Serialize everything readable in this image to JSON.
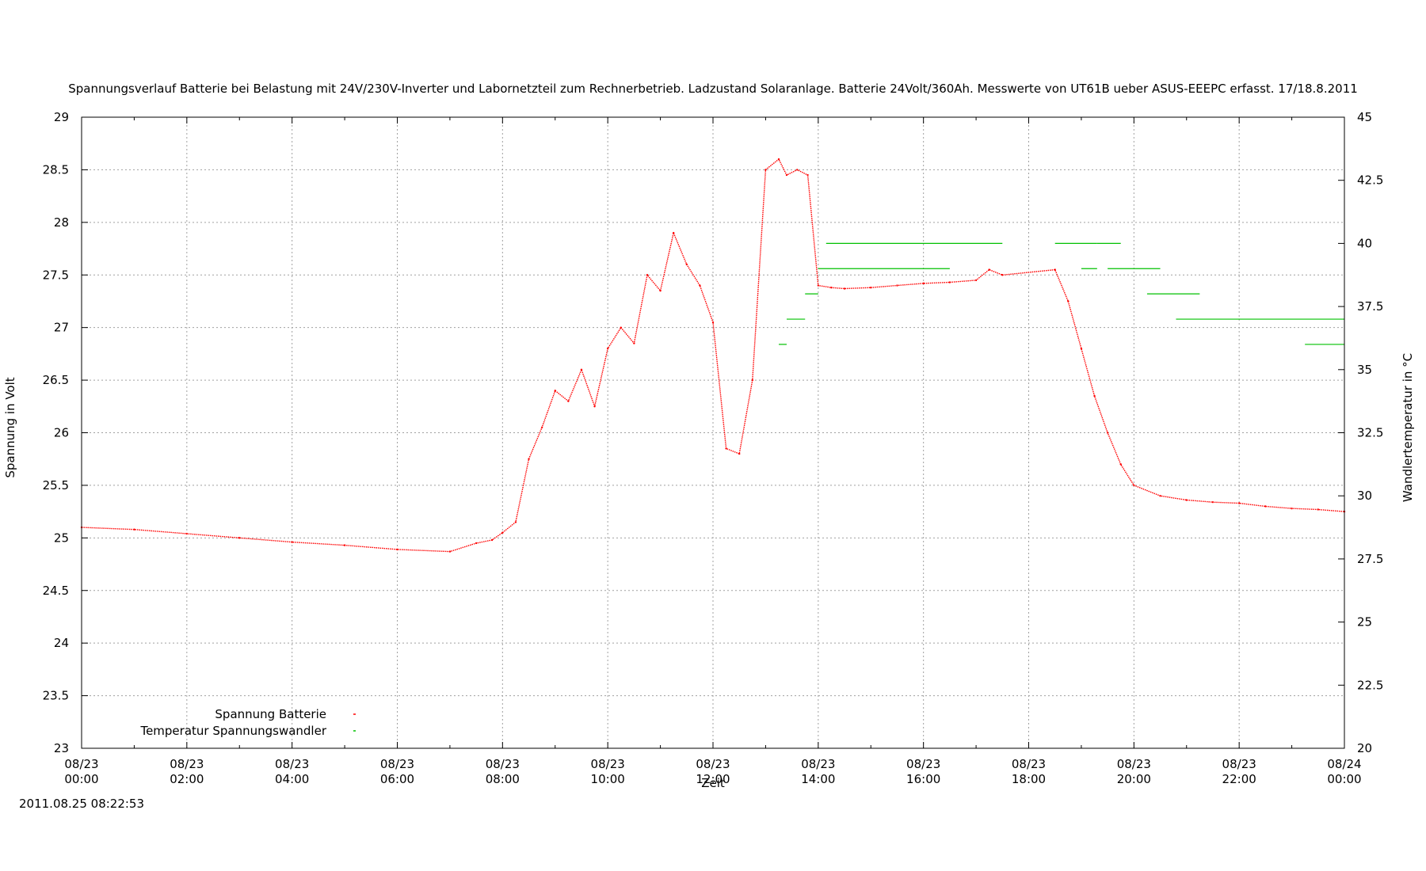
{
  "chart_data": {
    "type": "scatter",
    "title": "Spannungsverlauf Batterie bei Belastung mit 24V/230V-Inverter und Labornetzteil zum Rechnerbetrieb. Ladzustand Solaranlage. Batterie 24Volt/360Ah. Messwerte von UT61B ueber ASUS-EEEPC erfasst. 17/18.8.2011",
    "xlabel": "Zeit",
    "ylabel": "Spannung in Volt",
    "y2label": "Wandlertemperatur in °C",
    "timestamp": "2011.08.25 08:22:53",
    "xlim": [
      0,
      24
    ],
    "ylim": [
      23,
      29
    ],
    "y2lim": [
      20,
      45
    ],
    "grid": true,
    "legend_position": "bottom-left",
    "x_ticks": [
      {
        "date": "08/23",
        "time": "00:00"
      },
      {
        "date": "08/23",
        "time": "02:00"
      },
      {
        "date": "08/23",
        "time": "04:00"
      },
      {
        "date": "08/23",
        "time": "06:00"
      },
      {
        "date": "08/23",
        "time": "08:00"
      },
      {
        "date": "08/23",
        "time": "10:00"
      },
      {
        "date": "08/23",
        "time": "12:00"
      },
      {
        "date": "08/23",
        "time": "14:00"
      },
      {
        "date": "08/23",
        "time": "16:00"
      },
      {
        "date": "08/23",
        "time": "18:00"
      },
      {
        "date": "08/23",
        "time": "20:00"
      },
      {
        "date": "08/23",
        "time": "22:00"
      },
      {
        "date": "08/24",
        "time": "00:00"
      }
    ],
    "y_ticks": [
      "23",
      "23.5",
      "24",
      "24.5",
      "25",
      "25.5",
      "26",
      "26.5",
      "27",
      "27.5",
      "28",
      "28.5",
      "29"
    ],
    "y2_ticks": [
      "20",
      "22.5",
      "25",
      "27.5",
      "30",
      "32.5",
      "35",
      "37.5",
      "40",
      "42.5",
      "45"
    ],
    "series": [
      {
        "name": "Spannung Batterie",
        "color": "#ff0000",
        "axis": "y",
        "x": [
          0.0,
          1.0,
          2.0,
          3.0,
          4.0,
          5.0,
          6.0,
          7.0,
          7.5,
          7.8,
          8.0,
          8.25,
          8.5,
          8.75,
          9.0,
          9.25,
          9.5,
          9.75,
          10.0,
          10.25,
          10.5,
          10.75,
          11.0,
          11.25,
          11.5,
          11.75,
          12.0,
          12.25,
          12.5,
          12.75,
          13.0,
          13.25,
          13.4,
          13.6,
          13.8,
          14.0,
          14.25,
          14.5,
          15.0,
          15.5,
          16.0,
          16.5,
          17.0,
          17.25,
          17.5,
          18.5,
          18.75,
          19.0,
          19.25,
          19.5,
          19.75,
          20.0,
          20.5,
          21.0,
          21.5,
          22.0,
          22.5,
          23.0,
          23.5,
          24.0
        ],
        "y": [
          25.1,
          25.08,
          25.04,
          25.0,
          24.96,
          24.93,
          24.89,
          24.87,
          24.95,
          24.98,
          25.05,
          25.15,
          25.75,
          26.05,
          26.4,
          26.3,
          26.6,
          26.25,
          26.8,
          27.0,
          26.85,
          27.5,
          27.35,
          27.9,
          27.6,
          27.4,
          27.05,
          25.85,
          25.8,
          26.5,
          28.5,
          28.6,
          28.45,
          28.5,
          28.45,
          27.4,
          27.38,
          27.37,
          27.38,
          27.4,
          27.42,
          27.43,
          27.45,
          27.55,
          27.5,
          27.55,
          27.25,
          26.8,
          26.35,
          26.0,
          25.7,
          25.5,
          25.4,
          25.36,
          25.34,
          25.33,
          25.3,
          25.28,
          25.27,
          25.25
        ]
      },
      {
        "name": "Temperatur Spannungswandler",
        "color": "#00c000",
        "axis": "y2",
        "segments": [
          {
            "x1": 13.25,
            "x2": 13.4,
            "y": 36.0
          },
          {
            "x1": 13.4,
            "x2": 13.75,
            "y": 37.0
          },
          {
            "x1": 13.75,
            "x2": 14.0,
            "y": 38.0
          },
          {
            "x1": 14.0,
            "x2": 16.5,
            "y": 39.0
          },
          {
            "x1": 14.15,
            "x2": 17.5,
            "y": 40.0
          },
          {
            "x1": 18.5,
            "x2": 19.3,
            "y": 40.0
          },
          {
            "x1": 19.3,
            "x2": 19.75,
            "y": 40.0
          },
          {
            "x1": 19.0,
            "x2": 19.3,
            "y": 39.0
          },
          {
            "x1": 19.5,
            "x2": 20.5,
            "y": 39.0
          },
          {
            "x1": 20.25,
            "x2": 21.25,
            "y": 38.0
          },
          {
            "x1": 20.8,
            "x2": 24.0,
            "y": 37.0
          },
          {
            "x1": 23.25,
            "x2": 24.0,
            "y": 36.0
          }
        ]
      }
    ]
  }
}
